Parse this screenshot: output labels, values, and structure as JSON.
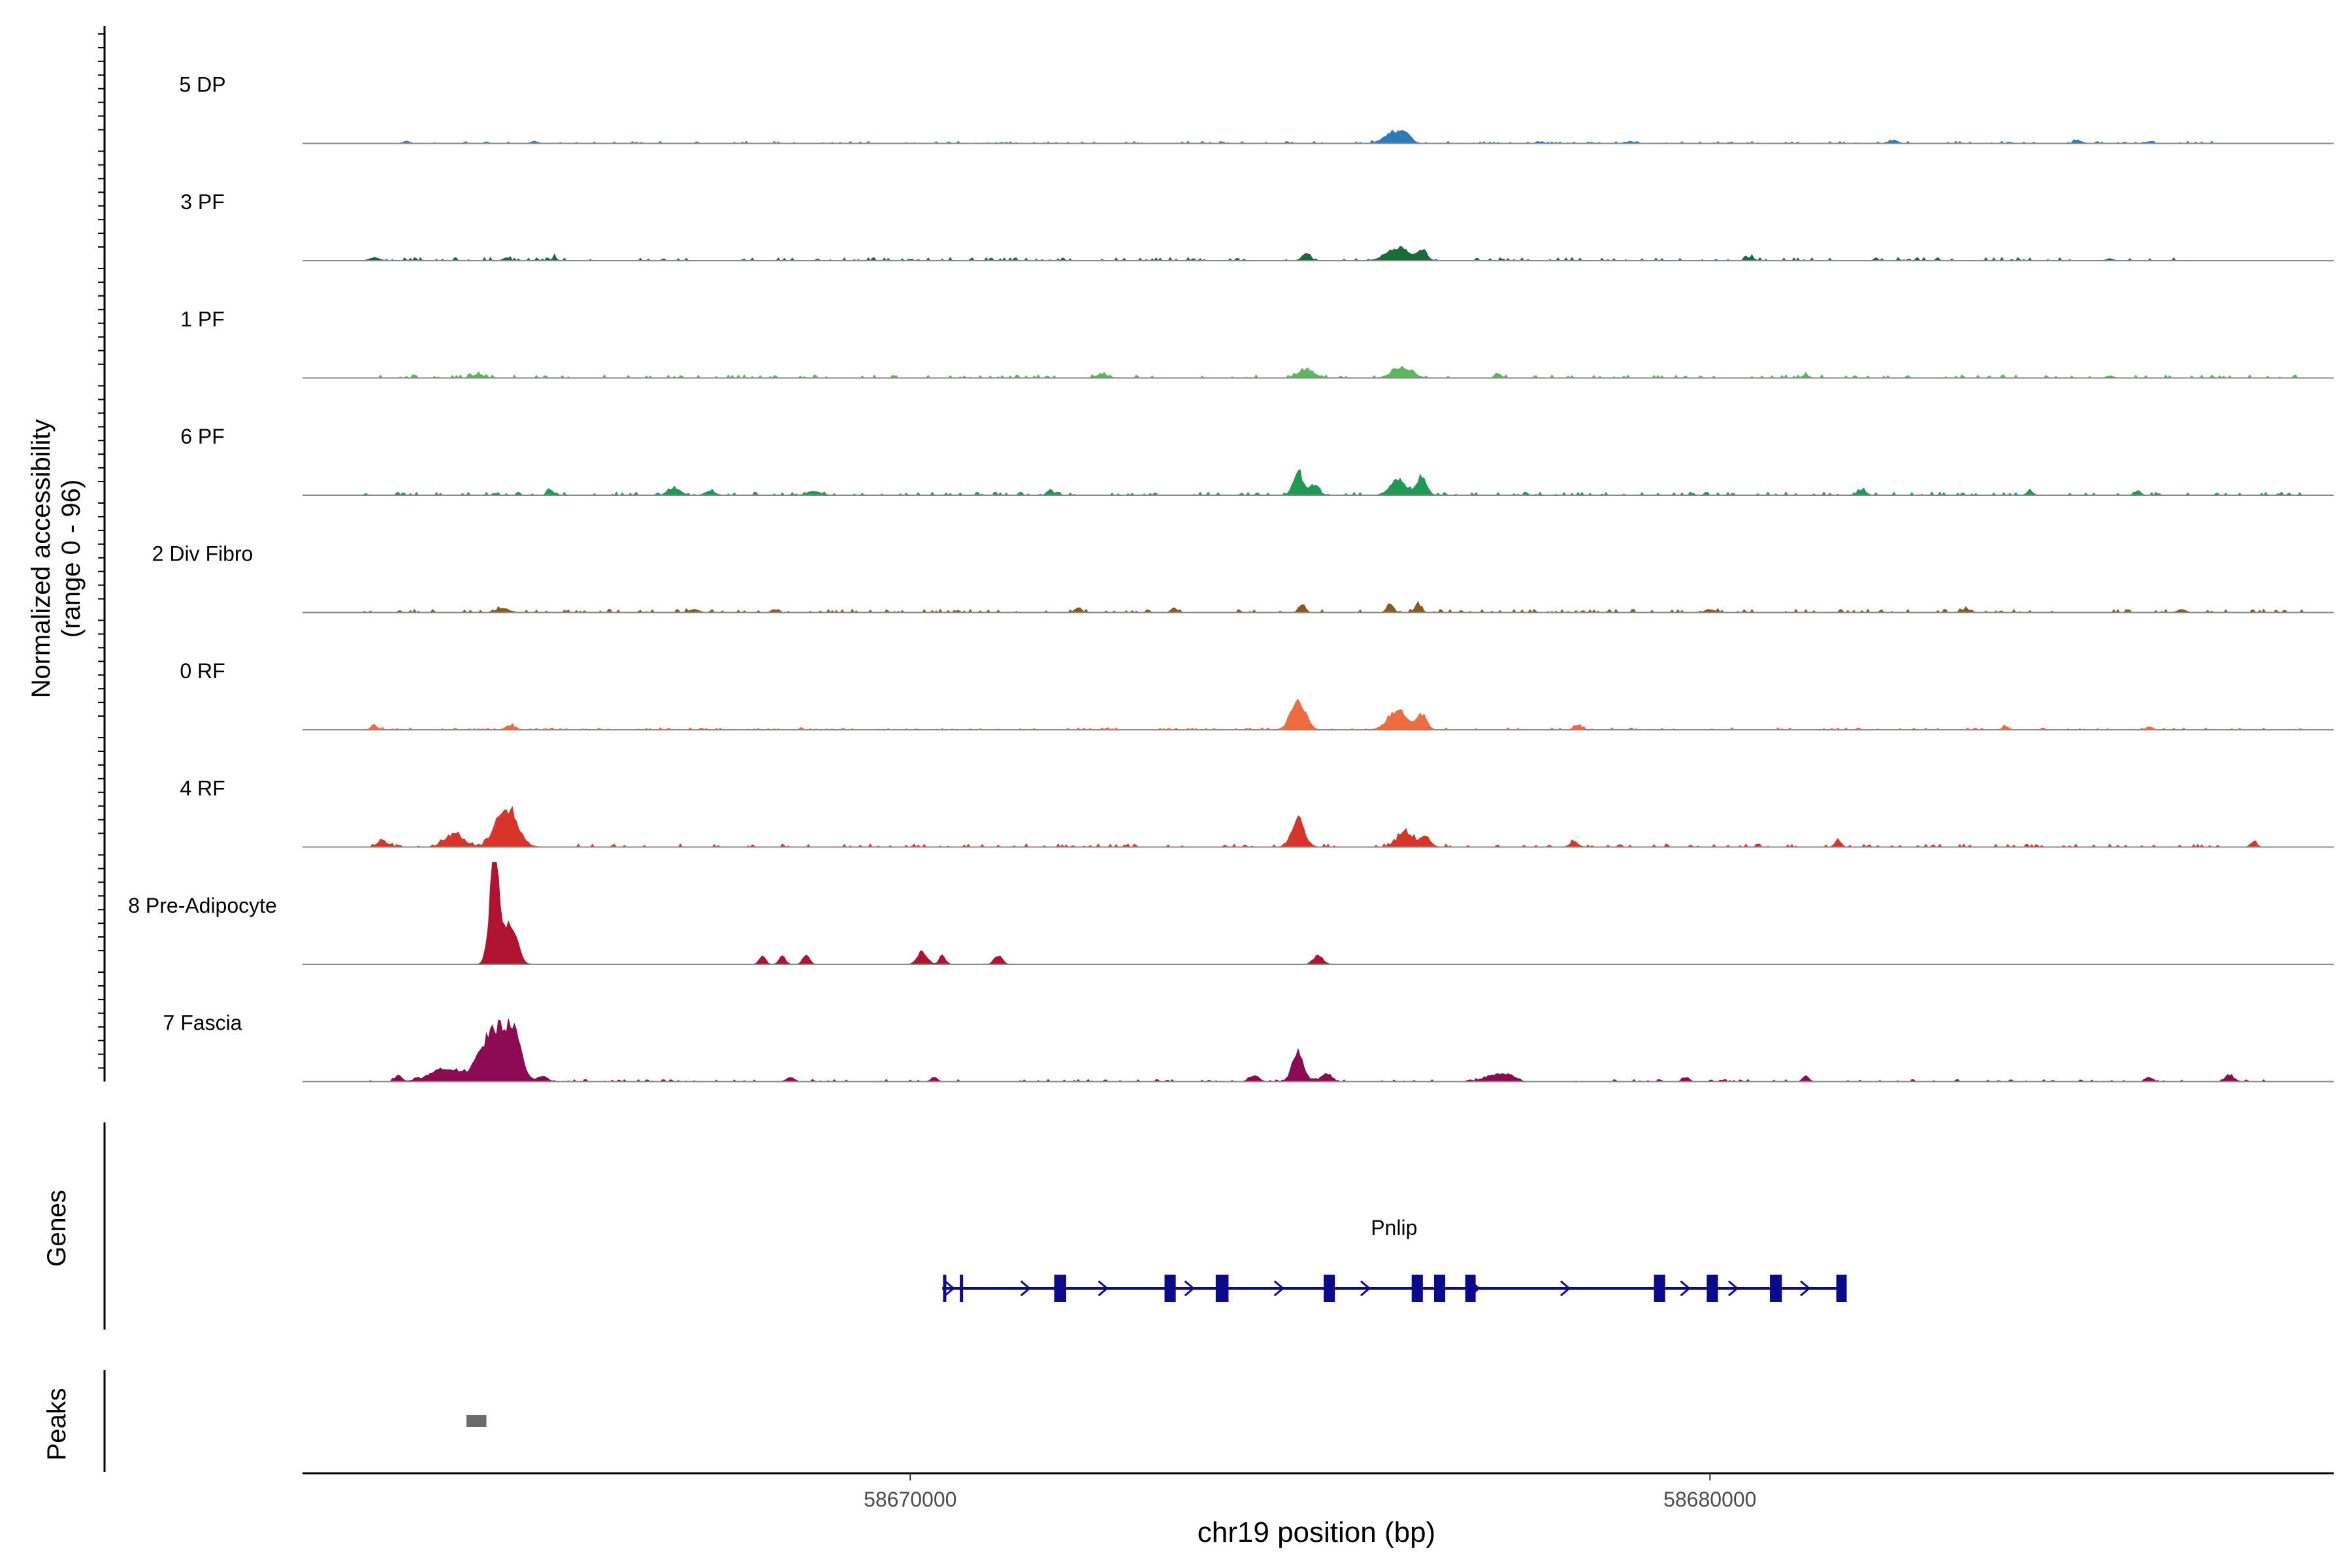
{
  "chart_data": {
    "type": "area",
    "ylabel": "Normalized accessibility",
    "ylabel_range": "(range 0 - 96)",
    "xlabel": "chr19 position (bp)",
    "xlim": [
      58662400,
      58687800
    ],
    "ylim": [
      0,
      96
    ],
    "x_ticks": [
      58670000,
      58680000
    ],
    "x_tick_labels": [
      "58670000",
      "58680000"
    ],
    "genes_label": "Genes",
    "peaks_label": "Peaks",
    "tracks": [
      {
        "name": "5 DP",
        "color": "#2b7bba",
        "max": 10,
        "peaks": [
          [
            58663700,
            40,
            2
          ],
          [
            58665300,
            40,
            2
          ],
          [
            58676050,
            120,
            10
          ],
          [
            58676200,
            60,
            7
          ],
          [
            58679000,
            40,
            2
          ],
          [
            58682300,
            50,
            3
          ],
          [
            58684600,
            50,
            3
          ],
          [
            58685500,
            40,
            2
          ]
        ],
        "noise": [
          [
            58663600,
            58686400,
            2
          ]
        ]
      },
      {
        "name": "3 PF",
        "color": "#1a6b3a",
        "max": 15,
        "peaks": [
          [
            58663300,
            60,
            3
          ],
          [
            58664950,
            40,
            3
          ],
          [
            58665550,
            30,
            3
          ],
          [
            58674950,
            50,
            7
          ],
          [
            58676100,
            140,
            12
          ],
          [
            58676400,
            60,
            9
          ],
          [
            58680500,
            50,
            3
          ],
          [
            58685000,
            40,
            2
          ]
        ],
        "noise": [
          [
            58663200,
            58686200,
            3
          ]
        ]
      },
      {
        "name": "1 PF",
        "color": "#5cb85c",
        "max": 15,
        "peaks": [
          [
            58664600,
            80,
            3
          ],
          [
            58672400,
            80,
            3
          ],
          [
            58674950,
            100,
            8
          ],
          [
            58676150,
            120,
            10
          ],
          [
            58677350,
            40,
            4
          ],
          [
            58681200,
            40,
            3
          ],
          [
            58685000,
            40,
            2
          ]
        ],
        "noise": [
          [
            58663200,
            58687400,
            3
          ]
        ]
      },
      {
        "name": "6 PF",
        "color": "#1e9a55",
        "max": 25,
        "peaks": [
          [
            58665500,
            40,
            5
          ],
          [
            58667050,
            80,
            6
          ],
          [
            58667500,
            60,
            4
          ],
          [
            58668800,
            80,
            4
          ],
          [
            58671750,
            40,
            5
          ],
          [
            58674850,
            60,
            22
          ],
          [
            58675050,
            60,
            9
          ],
          [
            58676100,
            100,
            14
          ],
          [
            58676400,
            60,
            16
          ],
          [
            58681900,
            50,
            5
          ],
          [
            58684000,
            40,
            4
          ],
          [
            58685350,
            40,
            4
          ]
        ],
        "noise": [
          [
            58663100,
            58687400,
            3
          ]
        ]
      },
      {
        "name": "2 Div Fibro",
        "color": "#8a5a1a",
        "max": 15,
        "peaks": [
          [
            58664900,
            80,
            4
          ],
          [
            58667300,
            60,
            3
          ],
          [
            58668300,
            40,
            3
          ],
          [
            58672100,
            40,
            5
          ],
          [
            58673300,
            40,
            4
          ],
          [
            58674900,
            40,
            8
          ],
          [
            58676000,
            40,
            9
          ],
          [
            58676350,
            40,
            8
          ],
          [
            58680000,
            60,
            3
          ],
          [
            58683200,
            60,
            3
          ],
          [
            58685900,
            50,
            3
          ]
        ],
        "noise": [
          [
            58663100,
            58687400,
            3
          ]
        ]
      },
      {
        "name": "0 RF",
        "color": "#ef6c3e",
        "max": 30,
        "peaks": [
          [
            58663300,
            40,
            4
          ],
          [
            58665000,
            60,
            4
          ],
          [
            58674850,
            90,
            28
          ],
          [
            58676100,
            120,
            18
          ],
          [
            58676400,
            60,
            14
          ],
          [
            58678350,
            50,
            4
          ],
          [
            58683700,
            40,
            3
          ],
          [
            58685500,
            40,
            3
          ]
        ],
        "noise": [
          [
            58663100,
            58687400,
            2
          ]
        ]
      },
      {
        "name": "4 RF",
        "color": "#d8352a",
        "max": 40,
        "peaks": [
          [
            58663400,
            60,
            6
          ],
          [
            58664300,
            120,
            12
          ],
          [
            58664950,
            130,
            36
          ],
          [
            58674850,
            80,
            26
          ],
          [
            58676200,
            100,
            14
          ],
          [
            58676450,
            60,
            9
          ],
          [
            58678300,
            50,
            5
          ],
          [
            58681600,
            40,
            6
          ],
          [
            58686800,
            40,
            5
          ]
        ],
        "noise": [
          [
            58663100,
            58687000,
            3
          ]
        ]
      },
      {
        "name": "8 Pre-Adipocyte",
        "color": "#b0122f",
        "max": 96,
        "peaks": [
          [
            58664800,
            60,
            96
          ],
          [
            58665000,
            80,
            40
          ],
          [
            58668150,
            40,
            8
          ],
          [
            58668400,
            40,
            8
          ],
          [
            58668700,
            40,
            10
          ],
          [
            58670150,
            60,
            12
          ],
          [
            58670400,
            40,
            8
          ],
          [
            58671100,
            50,
            8
          ],
          [
            58675100,
            60,
            8
          ]
        ],
        "noise": []
      },
      {
        "name": "7 Fascia",
        "color": "#8c0a52",
        "max": 60,
        "peaks": [
          [
            58663600,
            40,
            6
          ],
          [
            58664200,
            200,
            12
          ],
          [
            58664800,
            160,
            50
          ],
          [
            58665050,
            90,
            36
          ],
          [
            58665400,
            60,
            5
          ],
          [
            58668500,
            50,
            4
          ],
          [
            58670300,
            40,
            4
          ],
          [
            58674300,
            60,
            6
          ],
          [
            58674850,
            70,
            28
          ],
          [
            58675200,
            60,
            8
          ],
          [
            58677300,
            120,
            6
          ],
          [
            58677500,
            80,
            5
          ],
          [
            58679700,
            40,
            4
          ],
          [
            58681200,
            40,
            5
          ],
          [
            58685500,
            40,
            4
          ],
          [
            58686500,
            60,
            5
          ]
        ],
        "noise": [
          [
            58663100,
            58687000,
            2
          ]
        ]
      }
    ],
    "gene": {
      "name": "Pnlip",
      "strand": "+",
      "start": 58670400,
      "end": 58681700,
      "exons": [
        [
          58670410,
          58670440
        ],
        [
          58670620,
          58670660
        ],
        [
          58671800,
          58671950
        ],
        [
          58673180,
          58673320
        ],
        [
          58673820,
          58673980
        ],
        [
          58675170,
          58675310
        ],
        [
          58676270,
          58676410
        ],
        [
          58676550,
          58676690
        ],
        [
          58676940,
          58677070
        ],
        [
          58679300,
          58679440
        ],
        [
          58679960,
          58680100
        ],
        [
          58680750,
          58680900
        ],
        [
          58681580,
          58681710
        ]
      ],
      "chevrons": [
        58670500,
        58671450,
        58672420,
        58673500,
        58674620,
        58675700,
        58677070,
        58678200,
        58679700,
        58680300,
        58681200
      ]
    },
    "peak_regions": [
      [
        58664450,
        58664700
      ]
    ],
    "grid": false,
    "legend": "none"
  }
}
